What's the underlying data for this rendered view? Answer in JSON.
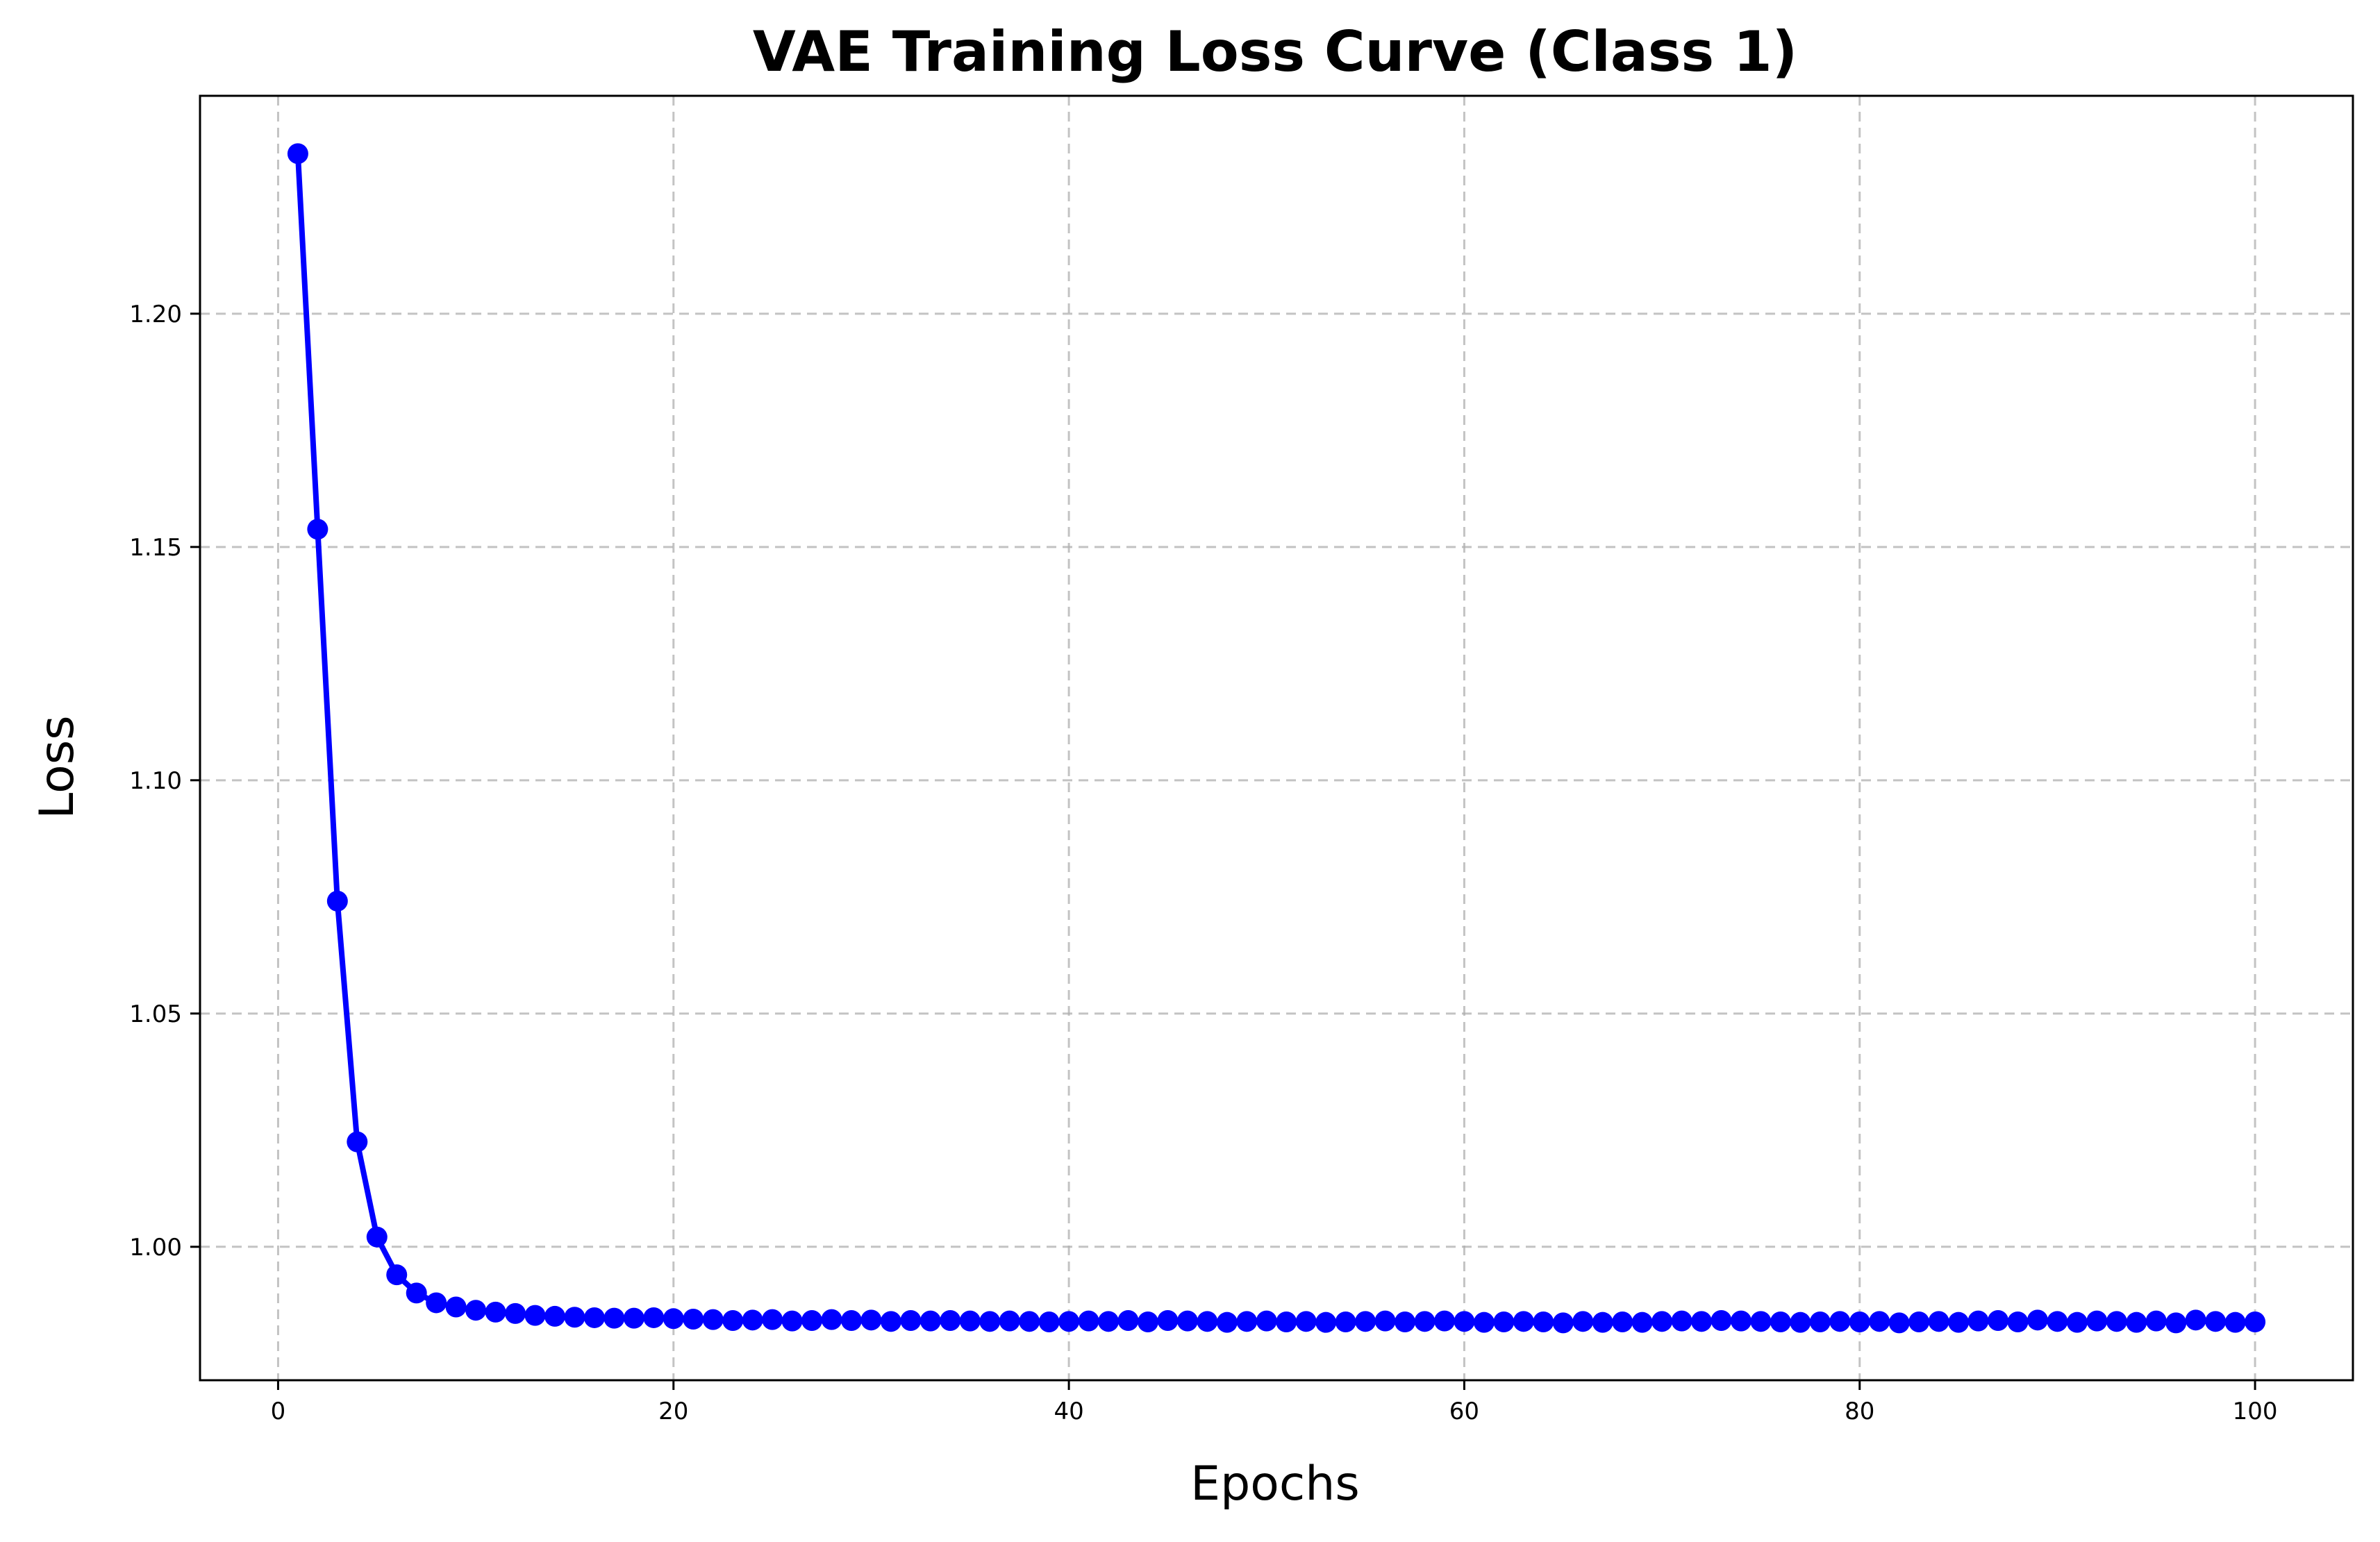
{
  "chart_data": {
    "type": "line",
    "title": "VAE Training Loss Curve (Class 1)",
    "xlabel": "Epochs",
    "ylabel": "Loss",
    "xlim": [
      -3.95,
      104.95
    ],
    "ylim": [
      0.9714,
      1.2467
    ],
    "xticks": [
      0,
      20,
      40,
      60,
      80,
      100
    ],
    "xtick_labels": [
      "0",
      "20",
      "40",
      "60",
      "80",
      "100"
    ],
    "yticks": [
      1.0,
      1.05,
      1.1,
      1.15,
      1.2
    ],
    "ytick_labels": [
      "1.00",
      "1.05",
      "1.10",
      "1.15",
      "1.20"
    ],
    "grid": true,
    "legend": "none",
    "series_color": "#0000ff",
    "x": [
      1,
      2,
      3,
      4,
      5,
      6,
      7,
      8,
      9,
      10,
      11,
      12,
      13,
      14,
      15,
      16,
      17,
      18,
      19,
      20,
      21,
      22,
      23,
      24,
      25,
      26,
      27,
      28,
      29,
      30,
      31,
      32,
      33,
      34,
      35,
      36,
      37,
      38,
      39,
      40,
      41,
      42,
      43,
      44,
      45,
      46,
      47,
      48,
      49,
      50,
      51,
      52,
      53,
      54,
      55,
      56,
      57,
      58,
      59,
      60,
      61,
      62,
      63,
      64,
      65,
      66,
      67,
      68,
      69,
      70,
      71,
      72,
      73,
      74,
      75,
      76,
      77,
      78,
      79,
      80,
      81,
      82,
      83,
      84,
      85,
      86,
      87,
      88,
      89,
      90,
      91,
      92,
      93,
      94,
      95,
      96,
      97,
      98,
      99,
      100
    ],
    "series": [
      {
        "values": [
          1.2343,
          1.1538,
          1.0741,
          1.0225,
          1.0021,
          0.994,
          0.9901,
          0.988,
          0.9871,
          0.9864,
          0.986,
          0.9857,
          0.9853,
          0.9851,
          0.9849,
          0.9848,
          0.9847,
          0.9847,
          0.9848,
          0.9846,
          0.9845,
          0.9844,
          0.9842,
          0.9843,
          0.9844,
          0.9841,
          0.9842,
          0.9844,
          0.9842,
          0.9843,
          0.984,
          0.9842,
          0.9841,
          0.9842,
          0.9841,
          0.984,
          0.9841,
          0.984,
          0.9839,
          0.984,
          0.9841,
          0.984,
          0.9842,
          0.9839,
          0.9842,
          0.9841,
          0.984,
          0.9838,
          0.984,
          0.9841,
          0.9839,
          0.984,
          0.9838,
          0.9839,
          0.984,
          0.9841,
          0.9839,
          0.984,
          0.9841,
          0.984,
          0.9838,
          0.9839,
          0.984,
          0.9839,
          0.9837,
          0.984,
          0.9838,
          0.9839,
          0.9838,
          0.984,
          0.9841,
          0.984,
          0.9842,
          0.9841,
          0.984,
          0.9839,
          0.9838,
          0.9839,
          0.984,
          0.9839,
          0.984,
          0.9837,
          0.9839,
          0.984,
          0.9838,
          0.9841,
          0.9842,
          0.9839,
          0.9843,
          0.984,
          0.9838,
          0.9841,
          0.984,
          0.9838,
          0.9841,
          0.9837,
          0.9843,
          0.984,
          0.9838,
          0.9839
        ]
      }
    ]
  }
}
